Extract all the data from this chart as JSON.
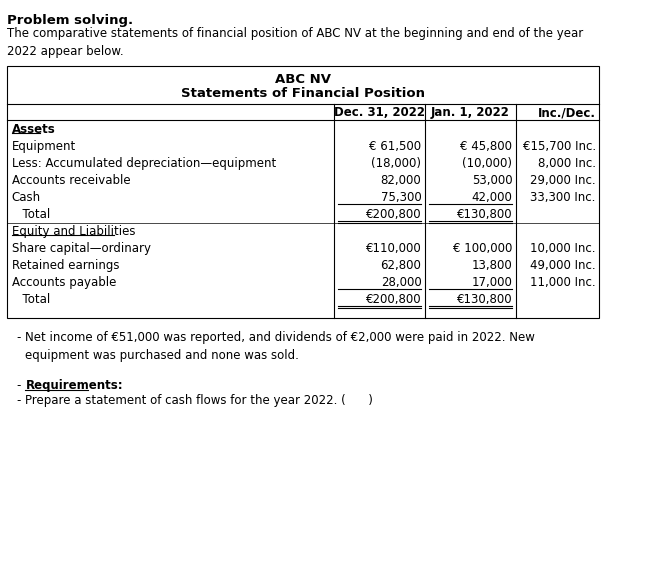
{
  "title_bold": "Problem solving.",
  "subtitle": "The comparative statements of financial position of ABC NV at the beginning and end of the year\n2022 appear below.",
  "table_title1": "ABC NV",
  "table_title2": "Statements of Financial Position",
  "col_headers": [
    "Dec. 31, 2022",
    "Jan. 1, 2022",
    "Inc./Dec."
  ],
  "rows": [
    {
      "label": "Assets",
      "dec31": "",
      "jan1": "",
      "incdec": "",
      "style": "underline_bold",
      "indent": 0
    },
    {
      "label": "Equipment",
      "dec31": "€ 61,500",
      "jan1": "€ 45,800",
      "incdec": "€15,700 Inc.",
      "style": "normal",
      "indent": 0
    },
    {
      "label": "Less: Accumulated depreciation—equipment",
      "dec31": "(18,000)",
      "jan1": "(10,000)",
      "incdec": "8,000 Inc.",
      "style": "normal",
      "indent": 0
    },
    {
      "label": "Accounts receivable",
      "dec31": "82,000",
      "jan1": "53,000",
      "incdec": "29,000 Inc.",
      "style": "normal",
      "indent": 0
    },
    {
      "label": "Cash",
      "dec31": "75,300",
      "jan1": "42,000",
      "incdec": "33,300 Inc.",
      "style": "underline_values",
      "indent": 0
    },
    {
      "label": "  Total",
      "dec31": "€200,800",
      "jan1": "€130,800",
      "incdec": "",
      "style": "double_underline_values",
      "indent": 4
    },
    {
      "label": "Equity and Liabilities",
      "dec31": "",
      "jan1": "",
      "incdec": "",
      "style": "underline_label",
      "indent": 0
    },
    {
      "label": "Share capital—ordinary",
      "dec31": "€110,000",
      "jan1": "€ 100,000",
      "incdec": "10,000 Inc.",
      "style": "normal",
      "indent": 0
    },
    {
      "label": "Retained earnings",
      "dec31": "62,800",
      "jan1": "13,800",
      "incdec": "49,000 Inc.",
      "style": "normal",
      "indent": 0
    },
    {
      "label": "Accounts payable",
      "dec31": "28,000",
      "jan1": "17,000",
      "incdec": "11,000 Inc.",
      "style": "underline_values",
      "indent": 0
    },
    {
      "label": "  Total",
      "dec31": "€200,800",
      "jan1": "€130,800",
      "incdec": "",
      "style": "double_underline_values",
      "indent": 4
    }
  ],
  "notes": [
    "Net income of €51,000 was reported, and dividends of €2,000 were paid in 2022. New\nequipment was purchased and none was sold."
  ],
  "requirements_label": "Requirements:",
  "requirements_item": "Prepare a statement of cash flows for the year 2022. (      )"
}
